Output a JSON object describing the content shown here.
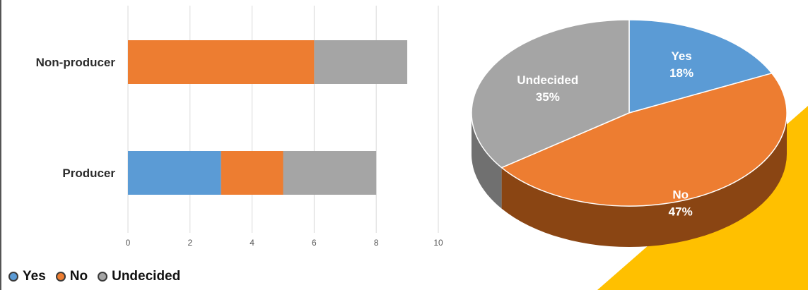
{
  "chart_data": [
    {
      "type": "bar",
      "stacked": true,
      "orientation": "horizontal",
      "categories": [
        "Non-producer",
        "Producer"
      ],
      "series": [
        {
          "name": "Yes",
          "values": [
            0,
            3
          ]
        },
        {
          "name": "No",
          "values": [
            6,
            2
          ]
        },
        {
          "name": "Undecided",
          "values": [
            3,
            3
          ]
        }
      ],
      "xlim": [
        0,
        10
      ],
      "xticks": [
        0,
        2,
        4,
        6,
        8,
        10
      ],
      "grid": true,
      "legend": "bottom-left"
    },
    {
      "type": "pie",
      "style": "3d",
      "categories": [
        "Yes",
        "No",
        "Undecided"
      ],
      "values": [
        18,
        47,
        35
      ],
      "labels": [
        {
          "name": "Yes",
          "text": "18%"
        },
        {
          "name": "No",
          "text": "47%"
        },
        {
          "name": "Undecided",
          "text": "35%"
        }
      ]
    }
  ],
  "colors": {
    "Yes": "#5b9bd5",
    "No": "#ed7d31",
    "Undecided": "#a5a5a5",
    "accent": "#ffc000"
  }
}
